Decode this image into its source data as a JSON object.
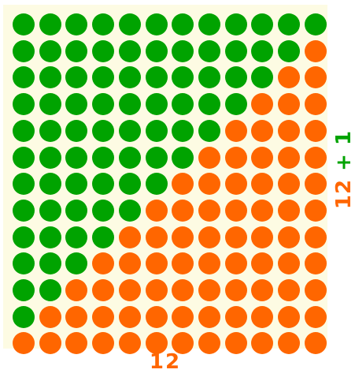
{
  "grid": {
    "rows": 13,
    "cols": 12,
    "colors": {
      "green": "#00a300",
      "orange": "#ff6600",
      "background": "#fdfbe3"
    },
    "green_per_row": [
      12,
      11,
      10,
      9,
      8,
      7,
      6,
      5,
      4,
      3,
      2,
      1,
      0
    ]
  },
  "labels": {
    "bottom": "12",
    "side_base": "12",
    "side_plus": "+",
    "side_one": "1"
  }
}
